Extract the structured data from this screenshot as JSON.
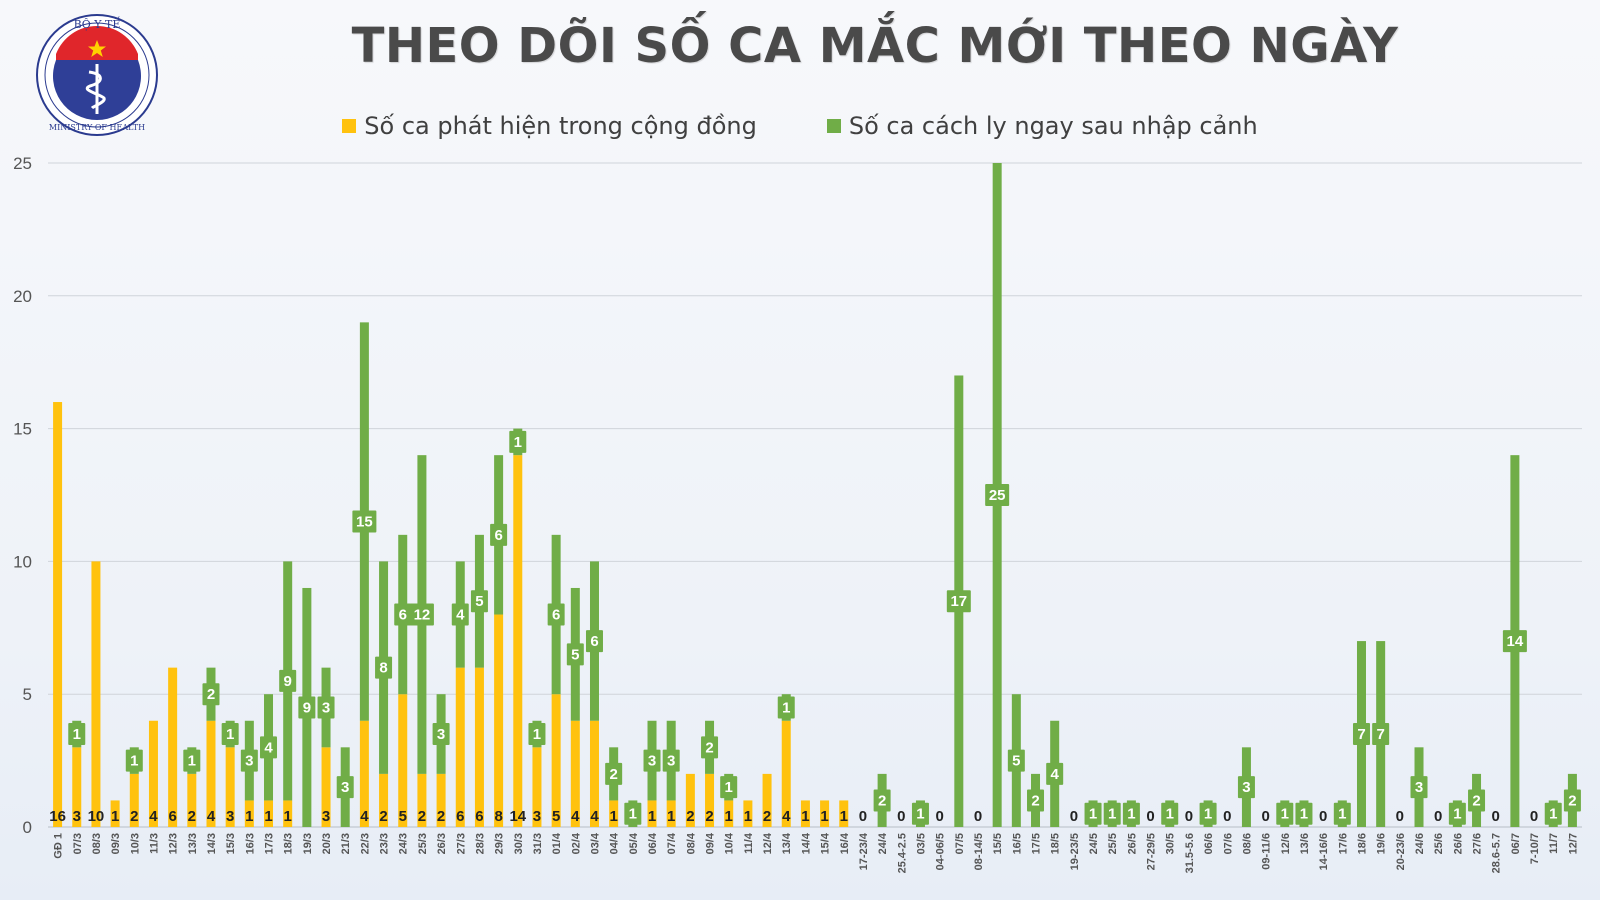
{
  "header": {
    "title": "THEO DÕI SỐ CA MẮC MỚI THEO NGÀY",
    "logo_top_text": "BỘ Y TẾ",
    "logo_bottom_text": "MINISTRY OF HEALTH"
  },
  "colors": {
    "community": "#ffc20e",
    "quarantine": "#70ad47",
    "grid": "#d0d4da",
    "text": "#404040"
  },
  "legend": {
    "community": "Số ca phát hiện trong cộng đồng",
    "quarantine": "Số ca cách ly ngay sau nhập cảnh"
  },
  "chart_data": {
    "type": "bar",
    "stacked": true,
    "ylim": [
      0,
      25
    ],
    "yticks": [
      0,
      5,
      10,
      15,
      20,
      25
    ],
    "grid": true,
    "legend_position": "top",
    "categories": [
      "GĐ 1",
      "07/3",
      "08/3",
      "09/3",
      "10/3",
      "11/3",
      "12/3",
      "13/3",
      "14/3",
      "15/3",
      "16/3",
      "17/3",
      "18/3",
      "19/3",
      "20/3",
      "21/3",
      "22/3",
      "23/3",
      "24/3",
      "25/3",
      "26/3",
      "27/3",
      "28/3",
      "29/3",
      "30/3",
      "31/3",
      "01/4",
      "02/4",
      "03/4",
      "04/4",
      "05/4",
      "06/4",
      "07/4",
      "08/4",
      "09/4",
      "10/4",
      "11/4",
      "12/4",
      "13/4",
      "14/4",
      "15/4",
      "16/4",
      "17-23/4",
      "24/4",
      "25.4-2.5",
      "03/5",
      "04-06/5",
      "07/5",
      "08-14/5",
      "15/5",
      "16/5",
      "17/5",
      "18/5",
      "19-23/5",
      "24/5",
      "25/5",
      "26/5",
      "27-29/5",
      "30/5",
      "31.5-5.6",
      "06/6",
      "07/6",
      "08/6",
      "09-11/6",
      "12/6",
      "13/6",
      "14-16/6",
      "17/6",
      "18/6",
      "19/6",
      "20-23/6",
      "24/6",
      "25/6",
      "26/6",
      "27/6",
      "28.6-5.7",
      "06/7",
      "7-10/7",
      "11/7",
      "12/7"
    ],
    "series": [
      {
        "name": "Số ca phát hiện trong cộng đồng",
        "values": [
          16,
          3,
          10,
          1,
          2,
          4,
          6,
          2,
          4,
          3,
          1,
          1,
          1,
          0,
          3,
          0,
          4,
          2,
          5,
          2,
          2,
          6,
          6,
          8,
          14,
          3,
          5,
          4,
          4,
          1,
          0,
          1,
          1,
          2,
          2,
          1,
          1,
          2,
          4,
          1,
          1,
          1,
          0,
          0,
          0,
          0,
          0,
          0,
          0,
          0,
          0,
          0,
          0,
          0,
          0,
          0,
          0,
          0,
          0,
          0,
          0,
          0,
          0,
          0,
          0,
          0,
          0,
          0,
          0,
          0,
          0,
          0,
          0,
          0,
          0,
          0,
          0,
          0,
          0,
          0
        ]
      },
      {
        "name": "Số ca cách ly ngay sau nhập cảnh",
        "values": [
          0,
          1,
          0,
          0,
          1,
          0,
          0,
          1,
          2,
          1,
          3,
          4,
          9,
          9,
          3,
          3,
          15,
          8,
          6,
          12,
          3,
          4,
          5,
          6,
          1,
          1,
          6,
          5,
          6,
          2,
          1,
          3,
          3,
          0,
          2,
          1,
          0,
          0,
          1,
          0,
          0,
          0,
          0,
          2,
          0,
          1,
          0,
          17,
          0,
          25,
          5,
          2,
          4,
          0,
          1,
          1,
          1,
          0,
          1,
          0,
          1,
          0,
          3,
          0,
          1,
          1,
          0,
          1,
          7,
          7,
          0,
          3,
          0,
          1,
          2,
          0,
          14,
          0,
          1,
          2
        ]
      }
    ],
    "totals": [
      16,
      4,
      10,
      1,
      3,
      4,
      6,
      3,
      6,
      4,
      4,
      5,
      10,
      9,
      6,
      3,
      19,
      10,
      11,
      14,
      5,
      10,
      11,
      14,
      15,
      4,
      11,
      9,
      10,
      3,
      1,
      4,
      4,
      2,
      4,
      2,
      1,
      2,
      5,
      1,
      1,
      1,
      0,
      2,
      0,
      1,
      0,
      17,
      0,
      25,
      5,
      2,
      4,
      0,
      1,
      1,
      1,
      0,
      1,
      0,
      1,
      0,
      3,
      0,
      1,
      1,
      0,
      1,
      7,
      7,
      0,
      3,
      0,
      1,
      2,
      0,
      14,
      0,
      1,
      2
    ]
  }
}
